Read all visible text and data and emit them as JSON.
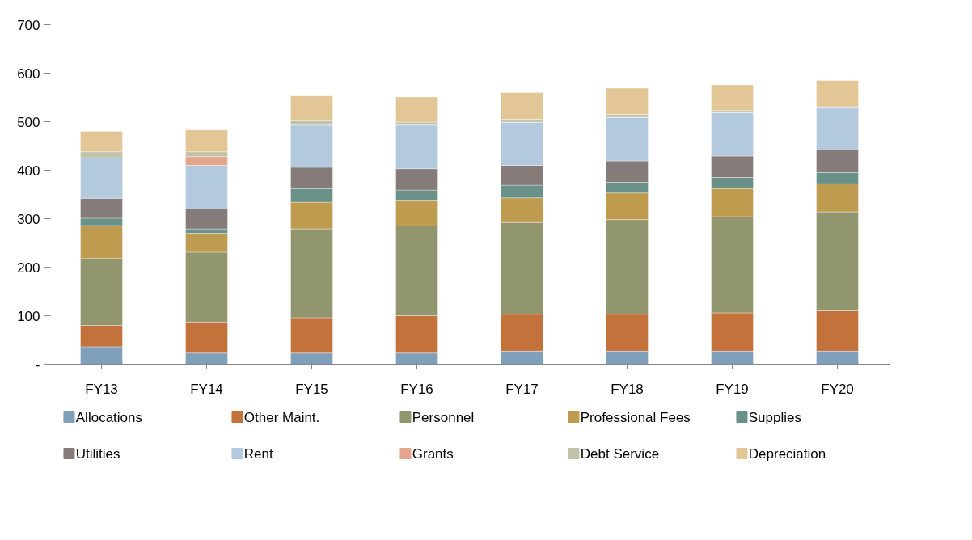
{
  "chart_data": {
    "type": "bar",
    "stacked": true,
    "categories": [
      "FY13",
      "FY14",
      "FY15",
      "FY16",
      "FY17",
      "FY18",
      "FY19",
      "FY20"
    ],
    "ylim": [
      0,
      700
    ],
    "yticks": [
      {
        "value": 0,
        "label": "-"
      },
      100,
      200,
      300,
      400,
      500,
      600,
      700
    ],
    "grid": false,
    "legend": "bottom",
    "series": [
      {
        "name": "Allocations",
        "color": "#7f9fba",
        "values": [
          36,
          23,
          23,
          23,
          27,
          27,
          27,
          27
        ]
      },
      {
        "name": "Other Maint.",
        "color": "#c4723c",
        "values": [
          44,
          64,
          73,
          77,
          76,
          76,
          79,
          83
        ]
      },
      {
        "name": "Personnel",
        "color": "#92966e",
        "values": [
          138,
          144,
          183,
          185,
          189,
          195,
          198,
          204
        ]
      },
      {
        "name": "Professional Fees",
        "color": "#bf9b50",
        "values": [
          68,
          39,
          55,
          52,
          51,
          55,
          58,
          58
        ]
      },
      {
        "name": "Supplies",
        "color": "#6a9188",
        "values": [
          15,
          9,
          28,
          22,
          26,
          22,
          23,
          23
        ]
      },
      {
        "name": "Utilities",
        "color": "#857b78",
        "values": [
          41,
          41,
          44,
          44,
          41,
          44,
          44,
          47
        ]
      },
      {
        "name": "Rent",
        "color": "#b3c9de",
        "values": [
          84,
          90,
          87,
          90,
          89,
          90,
          90,
          89
        ]
      },
      {
        "name": "Grants",
        "color": "#e3a68d",
        "values": [
          0,
          18,
          0,
          0,
          0,
          0,
          0,
          0
        ]
      },
      {
        "name": "Debt Service",
        "color": "#c0c3a9",
        "values": [
          12,
          10,
          9,
          6,
          6,
          6,
          4,
          0
        ]
      },
      {
        "name": "Depreciation",
        "color": "#e2c696",
        "values": [
          42,
          45,
          51,
          52,
          55,
          54,
          53,
          54
        ]
      }
    ]
  }
}
